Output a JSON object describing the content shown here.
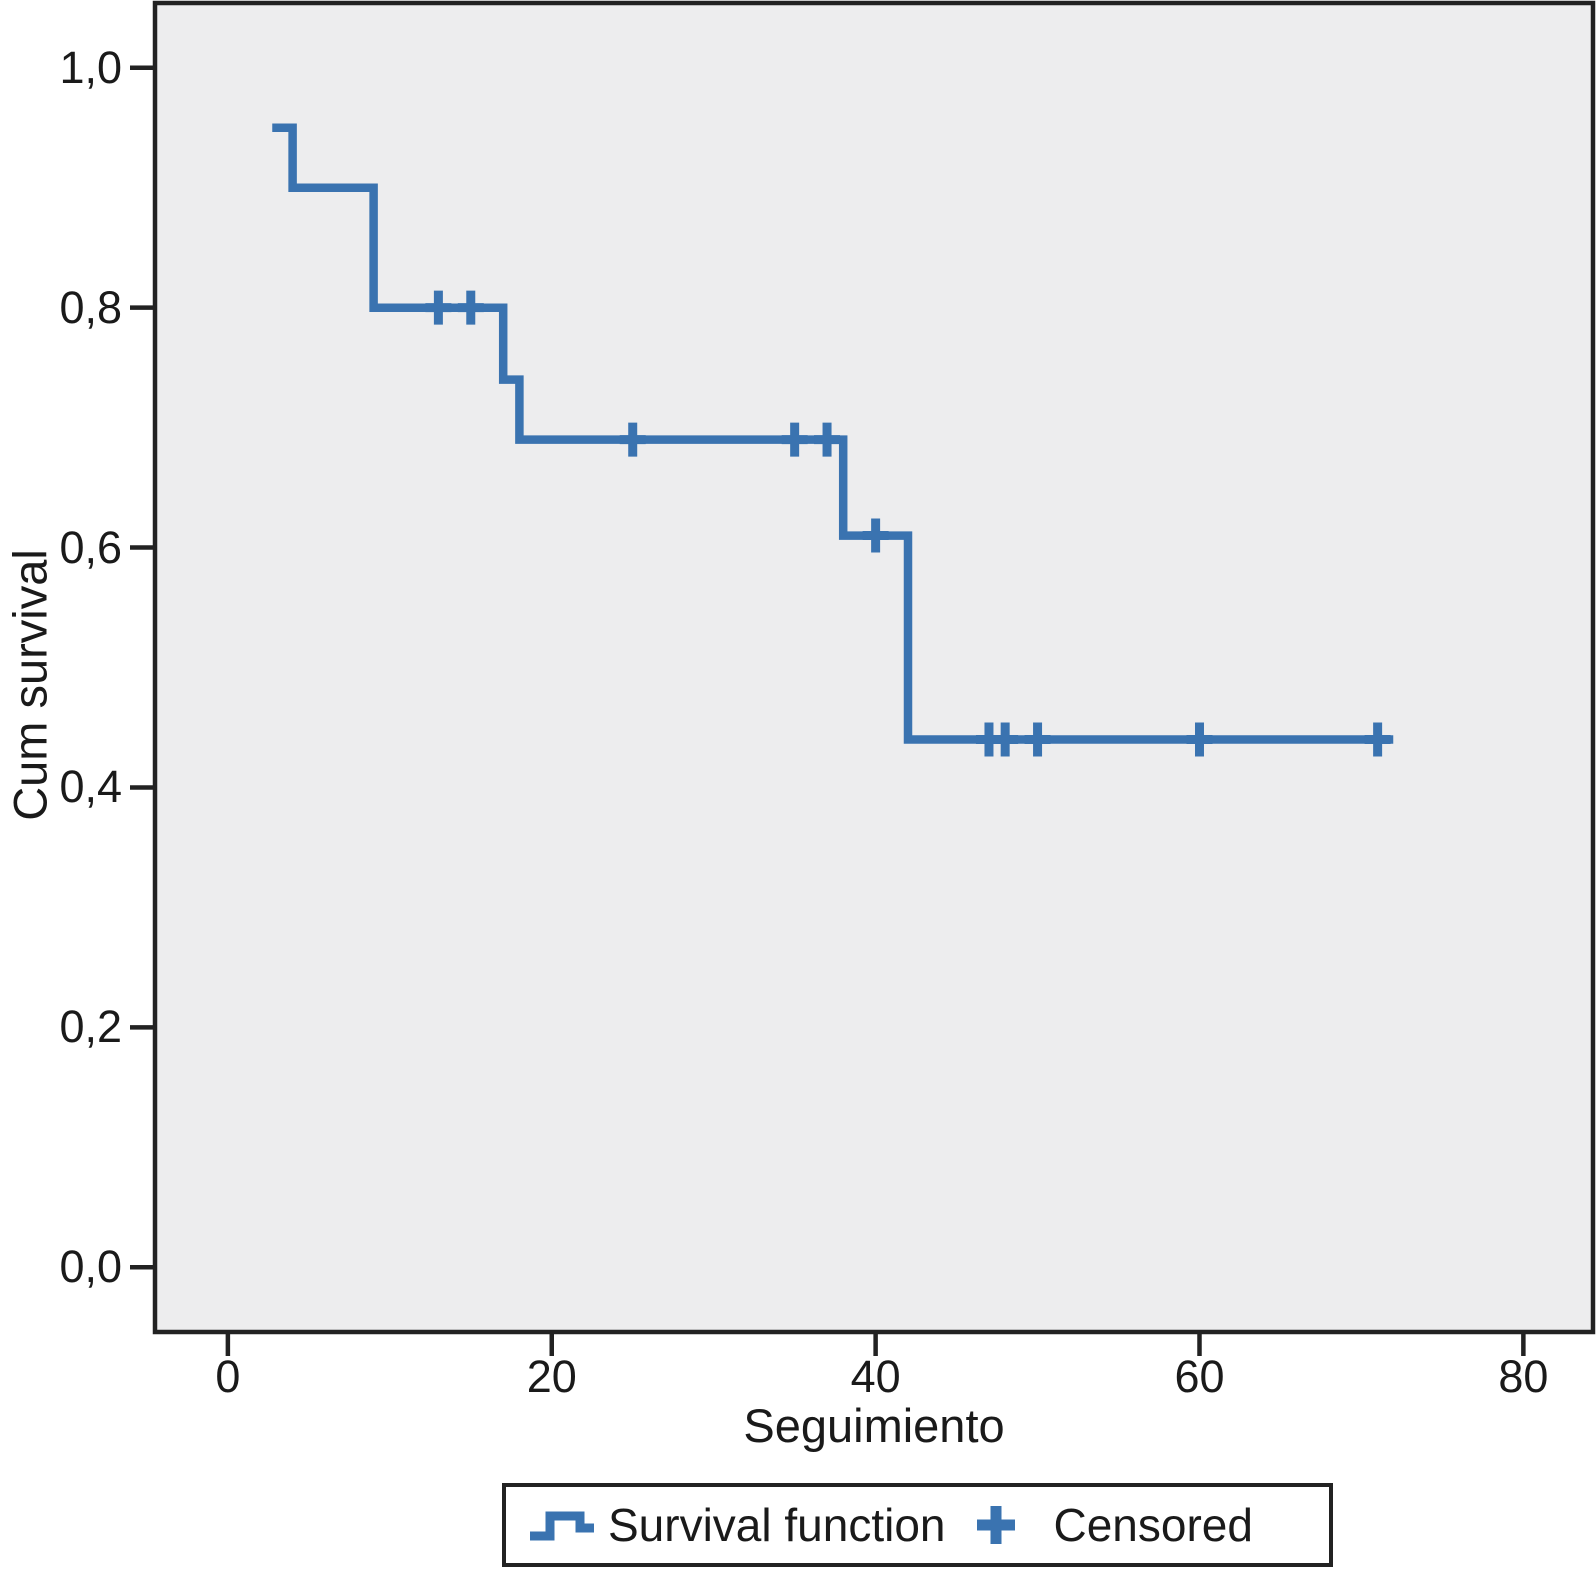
{
  "axes": {
    "x": {
      "label": "Seguimiento",
      "ticks": [
        0,
        20,
        40,
        60,
        80
      ],
      "tick_labels": [
        "0",
        "20",
        "40",
        "60",
        "80"
      ],
      "range": [
        -4.5,
        84.3
      ]
    },
    "y": {
      "label": "Cum survival",
      "ticks": [
        1.0,
        0.8,
        0.6,
        0.4,
        0.2,
        0.0
      ],
      "tick_labels": [
        "1,0",
        "0,8",
        "0,6",
        "0,4",
        "0,2",
        "0,0"
      ],
      "range": [
        -0.054,
        1.054
      ]
    }
  },
  "legend": {
    "survival_label": "Survival function",
    "censored_label": "Censored"
  },
  "colors": {
    "line": "#3a73b0",
    "plot_bg": "#ededee",
    "frame": "#222222",
    "text": "#1a1a1a"
  },
  "chart_data": {
    "type": "line",
    "subtype": "kaplan-meier-step",
    "title": "",
    "xlabel": "Seguimiento",
    "ylabel": "Cum survival",
    "xlim": [
      -4.5,
      84.3
    ],
    "ylim": [
      -0.054,
      1.054
    ],
    "grid": false,
    "legend_position": "bottom",
    "series": [
      {
        "name": "Survival function",
        "step_points": [
          [
            3,
            0.95
          ],
          [
            4,
            0.95
          ],
          [
            4,
            0.9
          ],
          [
            9,
            0.9
          ],
          [
            9,
            0.8
          ],
          [
            17,
            0.8
          ],
          [
            17,
            0.74
          ],
          [
            18,
            0.74
          ],
          [
            18,
            0.69
          ],
          [
            38,
            0.69
          ],
          [
            38,
            0.61
          ],
          [
            42,
            0.61
          ],
          [
            42,
            0.44
          ],
          [
            71.7,
            0.44
          ]
        ]
      }
    ],
    "censored": [
      [
        13,
        0.8
      ],
      [
        15,
        0.8
      ],
      [
        25,
        0.69
      ],
      [
        35,
        0.69
      ],
      [
        37,
        0.69
      ],
      [
        40,
        0.61
      ],
      [
        47,
        0.44
      ],
      [
        48,
        0.44
      ],
      [
        50,
        0.44
      ],
      [
        60,
        0.44
      ],
      [
        71,
        0.44
      ]
    ]
  }
}
